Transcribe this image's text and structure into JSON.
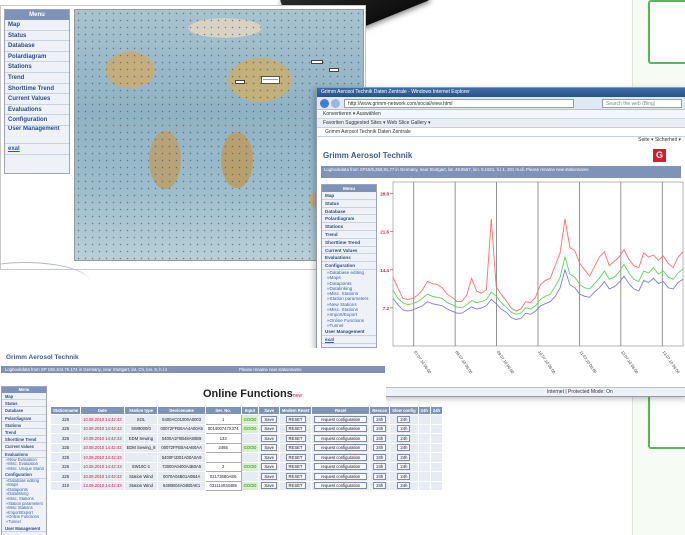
{
  "map_screen": {
    "menu": {
      "title": "Menu",
      "items": [
        "Map",
        "Status",
        "Database",
        "Polardiagram",
        "Stations",
        "Trend",
        "Shorttime Trend",
        "Current Values",
        "Evaluations",
        "Configuration",
        "User Management"
      ],
      "link": "exal"
    },
    "map_label": "———"
  },
  "browser_screen": {
    "window_title": "Grimm Aerosol Technik Daten Zentrale - Windows Internet Explorer",
    "url": "http://www.grimm-network.com/social/view.html",
    "search_placeholder": "Search the web (Bing)",
    "links_bar": "Konvertieren ▾  Auswählen",
    "favorites_bar": "Favoriten  Suggested Sites ▾  Web Slice Gallery ▾",
    "tab_title": "Grimm Aerosol Technik Daten Zentrale",
    "tools": "Seite ▾  Sicherheit ▾",
    "brand": "Grimm Aerosol Technik",
    "logo": "G",
    "info": "Logbookdata from SP15/5,250,91,77 in Germany, near Stuttgart, lat. 48.9567, lon. 9.1921, h.l.1, 201 m.dl.          Please rename new stationname",
    "menu": {
      "title": "Menu",
      "items": [
        "Map",
        "Status",
        "Database",
        "Polardiagram",
        "Stations",
        "Trend",
        "Shorttime Trend",
        "Current Values",
        "Evaluations",
        "Configuration"
      ],
      "sub_items": [
        "»Database editing",
        "»Maps",
        "»Datapoints",
        "»Datalinking",
        "»Misc. Stations",
        "»Station parameters",
        "»New Stations",
        "»Misc. Stations",
        "»Import/Export",
        "»Online Functions",
        "»Tunnel"
      ],
      "after_items": [
        "User Management"
      ],
      "link": "exal"
    },
    "status_text": "Internet | Protected Mode: On"
  },
  "functions_screen": {
    "brand": "Grimm Aerosol Technik",
    "info_left": "Logbookdata from SP 188.104.76.174 in Germany, near Stuttgart, lat. Ch, lon. 9, h.l.1",
    "info_right": "Please rename new stationname",
    "heading": "Online Functions",
    "heading_badge": "new",
    "menu": {
      "title": "Menu",
      "items": [
        "Map",
        "Status",
        "Database",
        "Polardiagram",
        "Stations",
        "Trend",
        "Shorttime Trend",
        "Current Values",
        "Evaluations"
      ],
      "sub_items": [
        "»New Evaluation",
        "»Misc. Evaluation",
        "»Misc. Unique Stand"
      ],
      "items2": [
        "Configuration"
      ],
      "sub_items2": [
        "»Database editing",
        "»Maps",
        "»Datapoints",
        "»Datalinking",
        "»Misc. Stations",
        "»Station parameters",
        "»Misc Stations",
        "»Import/Export",
        "»Online Functions",
        "»Tunnel"
      ],
      "items3": [
        "User Management"
      ],
      "link": "exal"
    },
    "table": {
      "headers": [
        "Stationname",
        "Date",
        "Station type",
        "Devicename",
        "Ser. No.",
        "Input",
        "Save",
        "Modem Reset",
        "Reset",
        "Rescan",
        "Slow config",
        "24h",
        "24h"
      ],
      "rows": [
        {
          "name": "225",
          "date": "10.08.2010 14:42:43",
          "type": "SOL",
          "dev": "5400AC01000A0003",
          "val": "1",
          "status": "GOOD",
          "a": "Save",
          "b": "RESET",
          "c": "request configuration",
          "d": "24h",
          "e": "24h"
        },
        {
          "name": "225",
          "date": "10.08.2010 14:42:43",
          "type": "SW9000/0",
          "dev": "00072FFB0AA4A00A5",
          "val": "001400747X374",
          "status": "GOOD",
          "a": "Save",
          "b": "RESET",
          "c": "request configuration",
          "d": "24h",
          "e": "24h"
        },
        {
          "name": "225",
          "date": "10.08.2010 14:42:43",
          "type": "EDM Sewing",
          "dev": "5400A1F0B48A90B9",
          "val": "133",
          "status": "",
          "a": "Save",
          "b": "RESET",
          "c": "request configuration",
          "d": "24h",
          "e": "24h"
        },
        {
          "name": "225",
          "date": "10.08.2010 14:42:43",
          "type": "EDM Sewing_8",
          "dev": "00072FFB0A4AB0AA",
          "val": "2466",
          "status": "GOOD",
          "a": "Save",
          "b": "RESET",
          "c": "request configuration",
          "d": "24h",
          "e": "24h"
        },
        {
          "name": "225",
          "date": "10.08.2010 14:42:43",
          "type": "",
          "dev": "5400F1D01A00A0A9",
          "val": "",
          "status": "",
          "a": "Save",
          "b": "RESET",
          "c": "request configuration",
          "d": "24h",
          "e": "24h"
        },
        {
          "name": "225",
          "date": "10.08.2010 14:42:43",
          "type": "SW10C-1",
          "dev": "73000A0400A4B0A5",
          "val": "2",
          "status": "GOOD",
          "a": "Save",
          "b": "RESET",
          "c": "request configuration",
          "d": "24h",
          "e": "24h"
        },
        {
          "name": "225",
          "date": "10.08.2010 14:42:43",
          "type": "Station Wind",
          "dev": "0070A04B01A0B4A",
          "val": "02173680AE6",
          "status": "",
          "a": "Save",
          "b": "RESET",
          "c": "request configuration",
          "d": "24h",
          "e": "24h"
        },
        {
          "name": "310",
          "date": "13.09.2010 14:42:43",
          "type": "Station Wind",
          "dev": "6490B04A04B0AE1",
          "val": "031114034485",
          "status": "GOOD",
          "a": "Save",
          "b": "RESET",
          "c": "request configuration",
          "d": "24h",
          "e": "24h"
        }
      ]
    }
  },
  "colors": {
    "accent": "#7f93b8",
    "link": "#2b53b8",
    "box_border": "#5bb55c",
    "red": "#d01f2a"
  },
  "chart_data": {
    "type": "line",
    "title": "",
    "xlabel": "",
    "ylabel": "",
    "ytick_labels": [
      "28.8",
      "21.6",
      "14.4",
      "7.2"
    ],
    "yticks": [
      28.8,
      21.6,
      14.4,
      7.2
    ],
    "ylim": [
      0,
      31
    ],
    "x_count": 60,
    "series": [
      {
        "color": "#ff6f6f",
        "values": [
          13,
          11,
          9,
          8.8,
          9,
          9.6,
          10.6,
          12.2,
          11.8,
          11.6,
          11,
          9.8,
          9.2,
          8.4,
          8.4,
          9.6,
          12.8,
          10.4,
          10,
          10.6,
          24,
          11.2,
          9.8,
          8.6,
          7.2,
          6.6,
          7,
          8.4,
          8.2,
          9.2,
          11.6,
          12.4,
          12.8,
          15.2,
          17.6,
          24,
          18.6,
          18,
          15.6,
          14.4,
          13.2,
          15,
          16.8,
          17.8,
          15.2,
          16,
          16.8,
          18.2,
          16.4,
          15.2,
          14.8,
          17.6,
          16.8,
          17.2,
          16.2,
          17,
          15.6,
          14.8,
          16.8,
          17.8
        ]
      },
      {
        "color": "#5fd35f",
        "values": [
          10.6,
          9,
          8.2,
          7.8,
          8,
          8.4,
          9,
          9.8,
          9.4,
          9.2,
          9,
          8.2,
          7.8,
          7.4,
          7.2,
          7.8,
          8.6,
          8.2,
          8.4,
          8.8,
          10.2,
          9.4,
          8.2,
          7.4,
          6.4,
          6,
          6.2,
          7.2,
          7,
          7.6,
          8.8,
          9.4,
          9.8,
          11.2,
          13,
          16.8,
          13.6,
          13,
          11.6,
          11,
          10.8,
          11.8,
          12.8,
          14.2,
          12.6,
          13,
          14,
          15.4,
          13.8,
          12.6,
          12.2,
          14.2,
          13.8,
          14.8,
          13.6,
          14.2,
          13,
          12.6,
          13.8,
          14.6
        ]
      },
      {
        "color": "#7c7cf2",
        "values": [
          9,
          7.8,
          6.8,
          6.6,
          6.8,
          7.2,
          7.6,
          8.4,
          8,
          7.8,
          7.6,
          7,
          6.6,
          6.2,
          6.2,
          6.8,
          7.4,
          7,
          7.2,
          7.6,
          8.8,
          8,
          7,
          6.4,
          5.4,
          5,
          5.2,
          6.2,
          6,
          6.6,
          7.6,
          8,
          8.4,
          9.4,
          11,
          14.4,
          11.6,
          11,
          9.8,
          9.4,
          9.2,
          10.2,
          11,
          12.2,
          10.8,
          11.2,
          12,
          13.2,
          11.8,
          10.8,
          10.4,
          12.4,
          12,
          12.8,
          11.8,
          12.2,
          11,
          10.8,
          12,
          12.6
        ]
      }
    ],
    "x_labels": [
      "07.07.10 06:00",
      "08.07.10 06:00",
      "09.07.10 06:00",
      "10.07.10 06:00",
      "11.07.10 06:00",
      "12.07.10 06:00",
      "13.07.10 06:00"
    ],
    "grid": "vertical",
    "legend": "none"
  }
}
